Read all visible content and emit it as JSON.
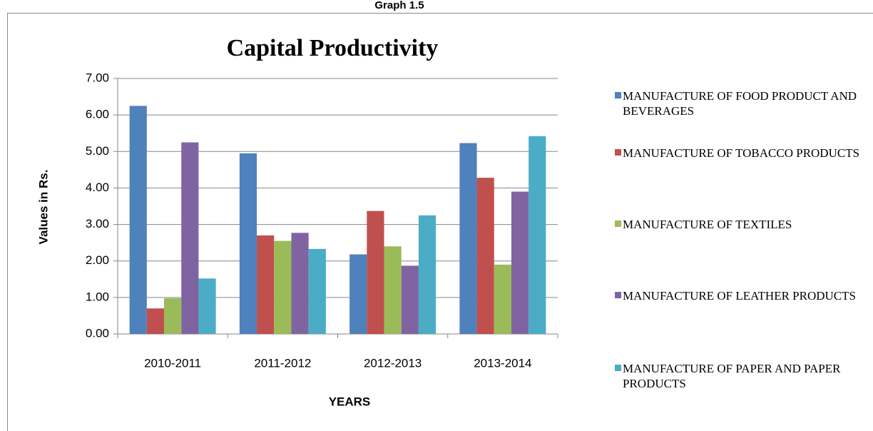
{
  "chart_data": {
    "type": "bar",
    "caption": "Graph 1.5",
    "title": "Capital Productivity",
    "y_label": "Values in Rs.",
    "x_label": "YEARS",
    "categories": [
      "2010-2011",
      "2011-2012",
      "2012-2013",
      "2013-2014"
    ],
    "series": [
      {
        "name": "MANUFACTURE OF FOOD PRODUCT AND BEVERAGES",
        "color": "#4f81bd",
        "values": [
          6.25,
          4.95,
          2.18,
          5.23
        ]
      },
      {
        "name": "MANUFACTURE OF TOBACCO PRODUCTS",
        "color": "#c0504d",
        "values": [
          0.7,
          2.7,
          3.37,
          4.28
        ]
      },
      {
        "name": "MANUFACTURE OF TEXTILES",
        "color": "#9bbb59",
        "values": [
          0.98,
          2.55,
          2.4,
          1.9
        ]
      },
      {
        "name": "MANUFACTURE OF LEATHER PRODUCTS",
        "color": "#8064a2",
        "values": [
          5.25,
          2.77,
          1.87,
          3.9
        ]
      },
      {
        "name": "MANUFACTURE OF PAPER AND PAPER PRODUCTS",
        "color": "#4bacc6",
        "values": [
          1.52,
          2.33,
          3.25,
          5.42
        ]
      }
    ],
    "ylim": [
      0,
      7
    ],
    "yticks": [
      {
        "value": 0,
        "label": "0.00"
      },
      {
        "value": 1,
        "label": "1.00"
      },
      {
        "value": 2,
        "label": "2.00"
      },
      {
        "value": 3,
        "label": "3.00"
      },
      {
        "value": 4,
        "label": "4.00"
      },
      {
        "value": 5,
        "label": "5.00"
      },
      {
        "value": 6,
        "label": "6.00"
      },
      {
        "value": 7,
        "label": "7.00"
      }
    ],
    "grid": true,
    "legend": "right"
  }
}
